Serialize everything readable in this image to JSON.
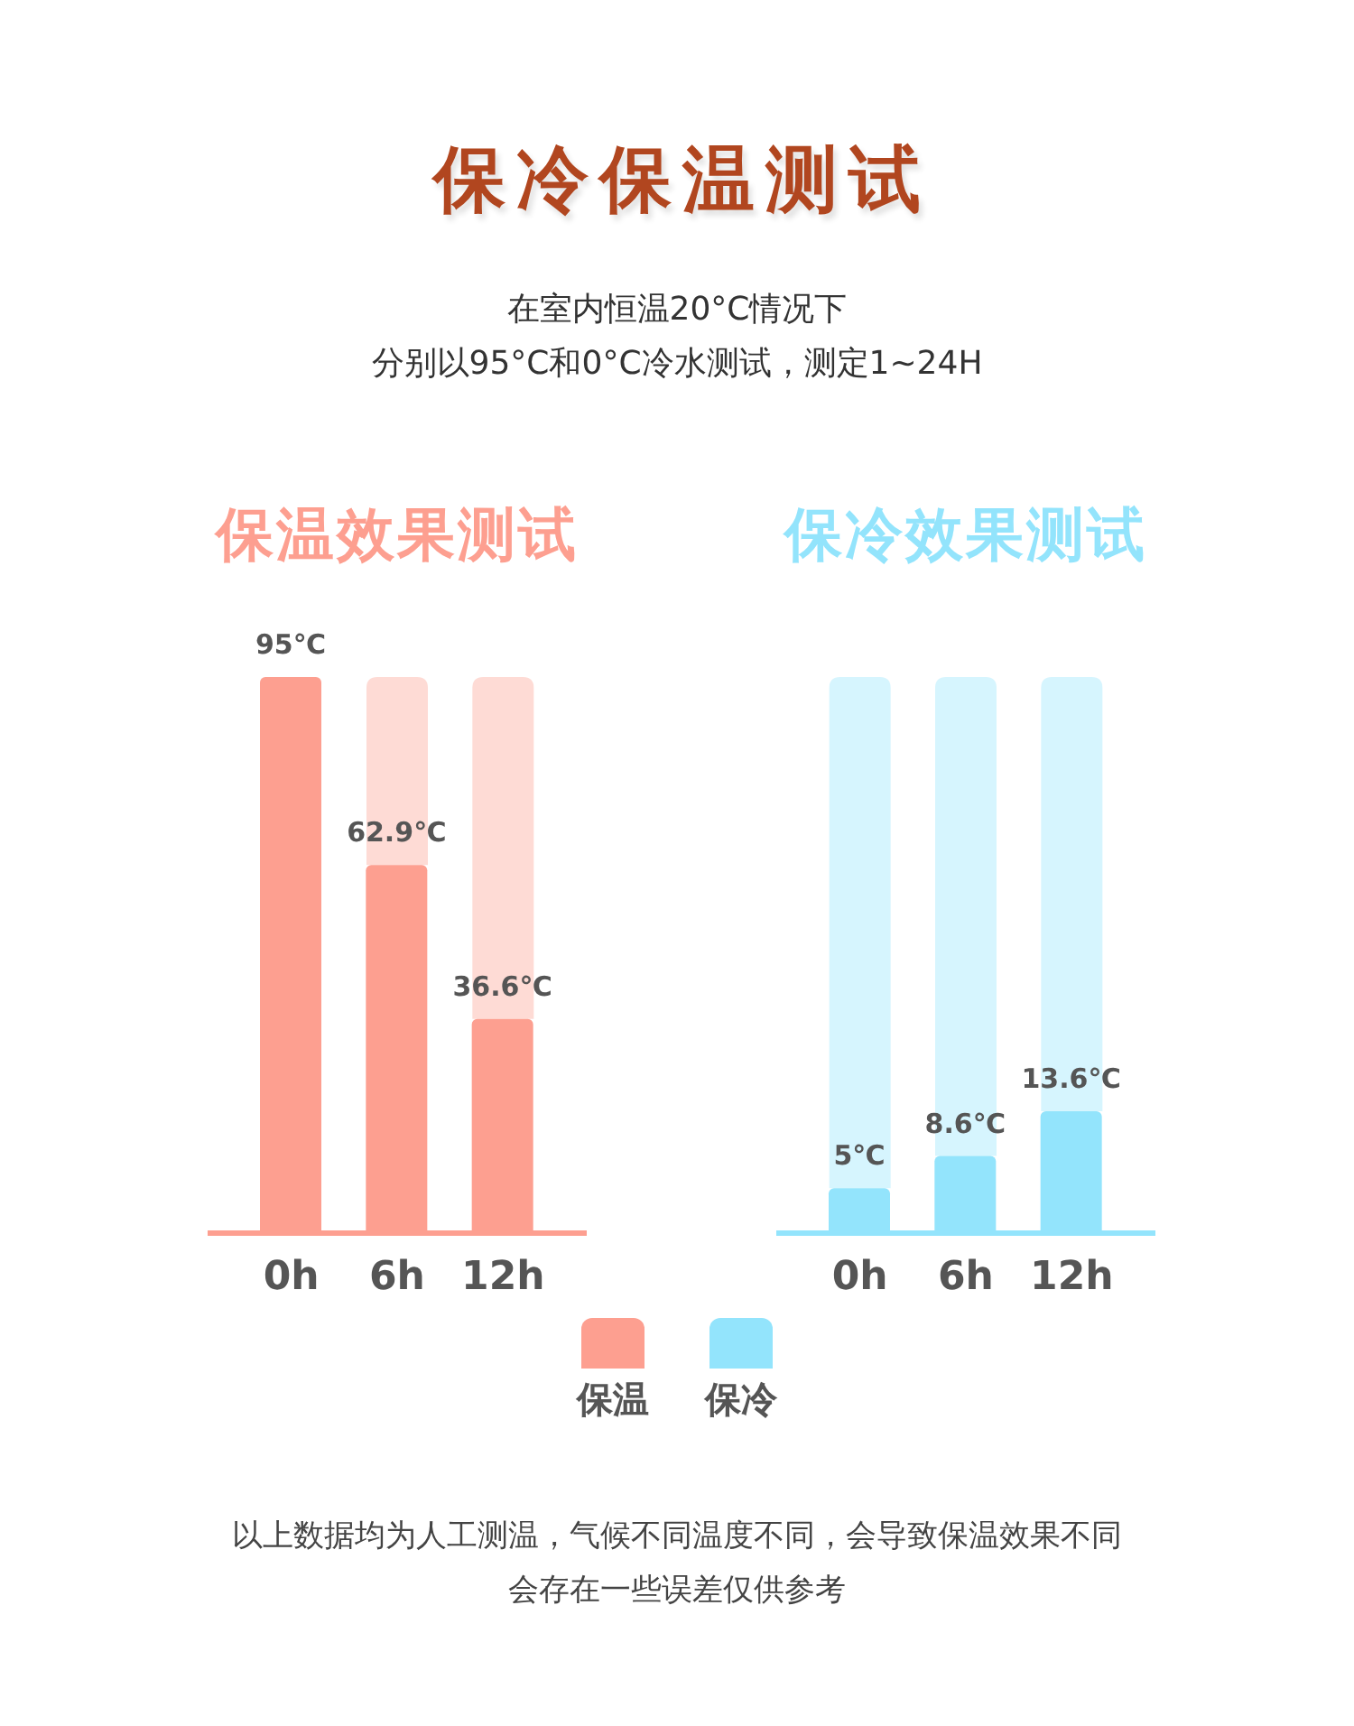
{
  "chart_data": [
    {
      "type": "other",
      "title": "保冷保温测试",
      "subtitle": "在室内恒温20°C情况下",
      "annotations": [
        "分别以95°C和0°C冷水测试，测定1~24H"
      ]
    },
    {
      "type": "bar",
      "title": "保温效果测试",
      "categories": [
        "0h",
        "6h",
        "12h"
      ],
      "series": [
        {
          "name": "保温",
          "color": "#fd9f90",
          "values": [
            95,
            62.9,
            36.6
          ],
          "value_labels": [
            "95℃",
            "62.9℃",
            "36.6℃"
          ]
        }
      ],
      "ylim": [
        0,
        95
      ],
      "legend": "bottom",
      "tick_labels": "x"
    },
    {
      "type": "bar",
      "title": "保冷效果测试",
      "categories": [
        "0h",
        "6h",
        "12h"
      ],
      "series": [
        {
          "name": "保冷",
          "color": "#93e4fc",
          "values": [
            5,
            8.6,
            13.6
          ],
          "value_labels": [
            "5℃",
            "8.6℃",
            "13.6℃"
          ]
        }
      ],
      "ylim": [
        0,
        62
      ],
      "legend": "bottom",
      "tick_labels": "x"
    },
    {
      "type": "other",
      "annotations": [
        "以上数据均为人工测温，气候不同温度不同，会导致保温效果不同会存在一些误差仅供参考"
      ]
    }
  ]
}
